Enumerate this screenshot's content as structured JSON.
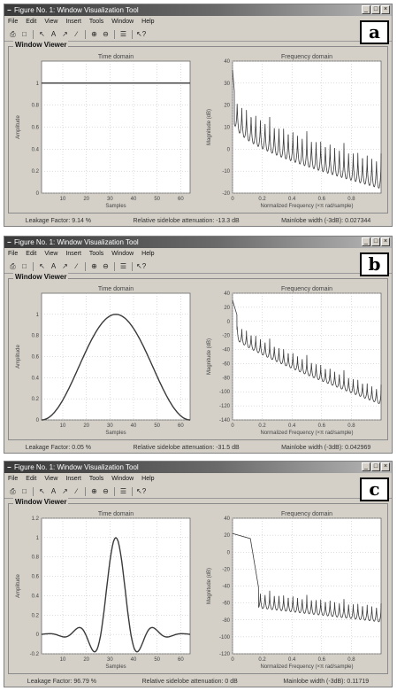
{
  "panels": [
    {
      "letter": "a",
      "title": "Figure No. 1: Window Visualization Tool",
      "menu": [
        "File",
        "Edit",
        "View",
        "Insert",
        "Tools",
        "Window",
        "Help"
      ],
      "group_label": "Window Viewer",
      "status": {
        "leakage": "Leakage Factor: 9.14 %",
        "sidelobe": "Relative sidelobe attenuation: -13.3 dB",
        "mainlobe": "Mainlobe width (-3dB): 0.027344"
      },
      "time_plot": {
        "title": "Time domain",
        "xlabel": "Samples",
        "ylabel": "Amplitude",
        "xlim": [
          1,
          64
        ],
        "ylim": [
          0,
          1.2
        ],
        "xticks": [
          "10",
          "20",
          "30",
          "40",
          "50",
          "60"
        ],
        "yticks": [
          "0",
          "0.2",
          "0.4",
          "0.6",
          "0.8",
          "1"
        ]
      },
      "freq_plot": {
        "title": "Frequency domain",
        "xlabel": "Normalized Frequency (×π rad/sample)",
        "ylabel": "Magnitude (dB)",
        "xlim": [
          0,
          1
        ],
        "ylim": [
          -20,
          40
        ],
        "xticks": [
          "0",
          "0.2",
          "0.4",
          "0.6",
          "0.8"
        ],
        "yticks": [
          "40",
          "30",
          "20",
          "10",
          "0",
          "-10",
          "-20"
        ]
      }
    },
    {
      "letter": "b",
      "title": "Figure No. 1: Window Visualization Tool",
      "menu": [
        "File",
        "Edit",
        "View",
        "Insert",
        "Tools",
        "Window",
        "Help"
      ],
      "group_label": "Window Viewer",
      "status": {
        "leakage": "Leakage Factor: 0.05 %",
        "sidelobe": "Relative sidelobe attenuation: -31.5 dB",
        "mainlobe": "Mainlobe width (-3dB): 0.042969"
      },
      "time_plot": {
        "title": "Time domain",
        "xlabel": "Samples",
        "ylabel": "Amplitude",
        "xlim": [
          1,
          64
        ],
        "ylim": [
          0,
          1.2
        ],
        "xticks": [
          "10",
          "20",
          "30",
          "40",
          "50",
          "60"
        ],
        "yticks": [
          "0",
          "0.2",
          "0.4",
          "0.6",
          "0.8",
          "1"
        ]
      },
      "freq_plot": {
        "title": "Frequency domain",
        "xlabel": "Normalized Frequency (×π rad/sample)",
        "ylabel": "Magnitude (dB)",
        "xlim": [
          0,
          1
        ],
        "ylim": [
          -140,
          40
        ],
        "xticks": [
          "0",
          "0.2",
          "0.4",
          "0.6",
          "0.8"
        ],
        "yticks": [
          "40",
          "20",
          "0",
          "-20",
          "-40",
          "-60",
          "-80",
          "-100",
          "-120",
          "-140"
        ]
      }
    },
    {
      "letter": "c",
      "title": "Figure No. 1: Window Visualization Tool",
      "menu": [
        "File",
        "Edit",
        "View",
        "Insert",
        "Tools",
        "Window",
        "Help"
      ],
      "group_label": "Window Viewer",
      "status": {
        "leakage": "Leakage Factor: 96.79 %",
        "sidelobe": "Relative sidelobe attenuation: 0 dB",
        "mainlobe": "Mainlobe width (-3dB): 0.11719"
      },
      "time_plot": {
        "title": "Time domain",
        "xlabel": "Samples",
        "ylabel": "Amplitude",
        "xlim": [
          1,
          64
        ],
        "ylim": [
          -0.2,
          1.2
        ],
        "xticks": [
          "10",
          "20",
          "30",
          "40",
          "50",
          "60"
        ],
        "yticks": [
          "1.2",
          "1",
          "0.8",
          "0.6",
          "0.4",
          "0.2",
          "0",
          "-0.2"
        ]
      },
      "freq_plot": {
        "title": "Frequency domain",
        "xlabel": "Normalized Frequency (×π rad/sample)",
        "ylabel": "Magnitude (dB)",
        "xlim": [
          0,
          1
        ],
        "ylim": [
          -120,
          40
        ],
        "xticks": [
          "0",
          "0.2",
          "0.4",
          "0.6",
          "0.8"
        ],
        "yticks": [
          "40",
          "20",
          "0",
          "-20",
          "-40",
          "-60",
          "-80",
          "-100",
          "-120"
        ]
      }
    }
  ],
  "chart_data": [
    {
      "panel": "a",
      "type": "line",
      "title": "Time domain",
      "xlabel": "Samples",
      "ylabel": "Amplitude",
      "series": [
        {
          "kind": "rectangular",
          "x_range": [
            1,
            64
          ],
          "y_constant": 1
        }
      ],
      "xlim": [
        1,
        64
      ],
      "ylim": [
        0,
        1.2
      ],
      "grid": true
    },
    {
      "panel": "a",
      "type": "line",
      "title": "Frequency domain",
      "xlabel": "Normalized Frequency (×π rad/sample)",
      "ylabel": "Magnitude (dB)",
      "x": [
        0,
        0.05,
        0.2,
        0.4,
        0.6,
        0.8,
        1.0
      ],
      "y_envelope": [
        36,
        20,
        8,
        2,
        -2,
        -5,
        -6
      ],
      "xlim": [
        0,
        1
      ],
      "ylim": [
        -20,
        40
      ],
      "grid": true
    },
    {
      "panel": "b",
      "type": "line",
      "title": "Time domain",
      "xlabel": "Samples",
      "ylabel": "Amplitude",
      "series": [
        {
          "kind": "hann",
          "x_range": [
            1,
            64
          ],
          "peak": 1
        }
      ],
      "xlim": [
        1,
        64
      ],
      "ylim": [
        0,
        1.2
      ],
      "grid": true
    },
    {
      "panel": "b",
      "type": "line",
      "title": "Frequency domain",
      "xlabel": "Normalized Frequency (×π rad/sample)",
      "ylabel": "Magnitude (dB)",
      "x": [
        0,
        0.05,
        0.2,
        0.4,
        0.6,
        0.8,
        1.0
      ],
      "y_envelope": [
        30,
        2,
        -30,
        -52,
        -66,
        -78,
        -90
      ],
      "xlim": [
        0,
        1
      ],
      "ylim": [
        -140,
        40
      ],
      "grid": true
    },
    {
      "panel": "c",
      "type": "line",
      "title": "Time domain",
      "xlabel": "Samples",
      "ylabel": "Amplitude",
      "series": [
        {
          "kind": "sinc-like",
          "x_range": [
            1,
            64
          ],
          "peak": 1,
          "min": -0.06
        }
      ],
      "xlim": [
        1,
        64
      ],
      "ylim": [
        -0.2,
        1.2
      ],
      "grid": true
    },
    {
      "panel": "c",
      "type": "line",
      "title": "Frequency domain",
      "xlabel": "Normalized Frequency (×π rad/sample)",
      "ylabel": "Magnitude (dB)",
      "x": [
        0,
        0.1,
        0.17,
        0.2,
        0.6,
        1.0
      ],
      "y_envelope": [
        22,
        18,
        -40,
        -45,
        -55,
        -60
      ],
      "xlim": [
        0,
        1
      ],
      "ylim": [
        -120,
        40
      ],
      "grid": true
    }
  ]
}
